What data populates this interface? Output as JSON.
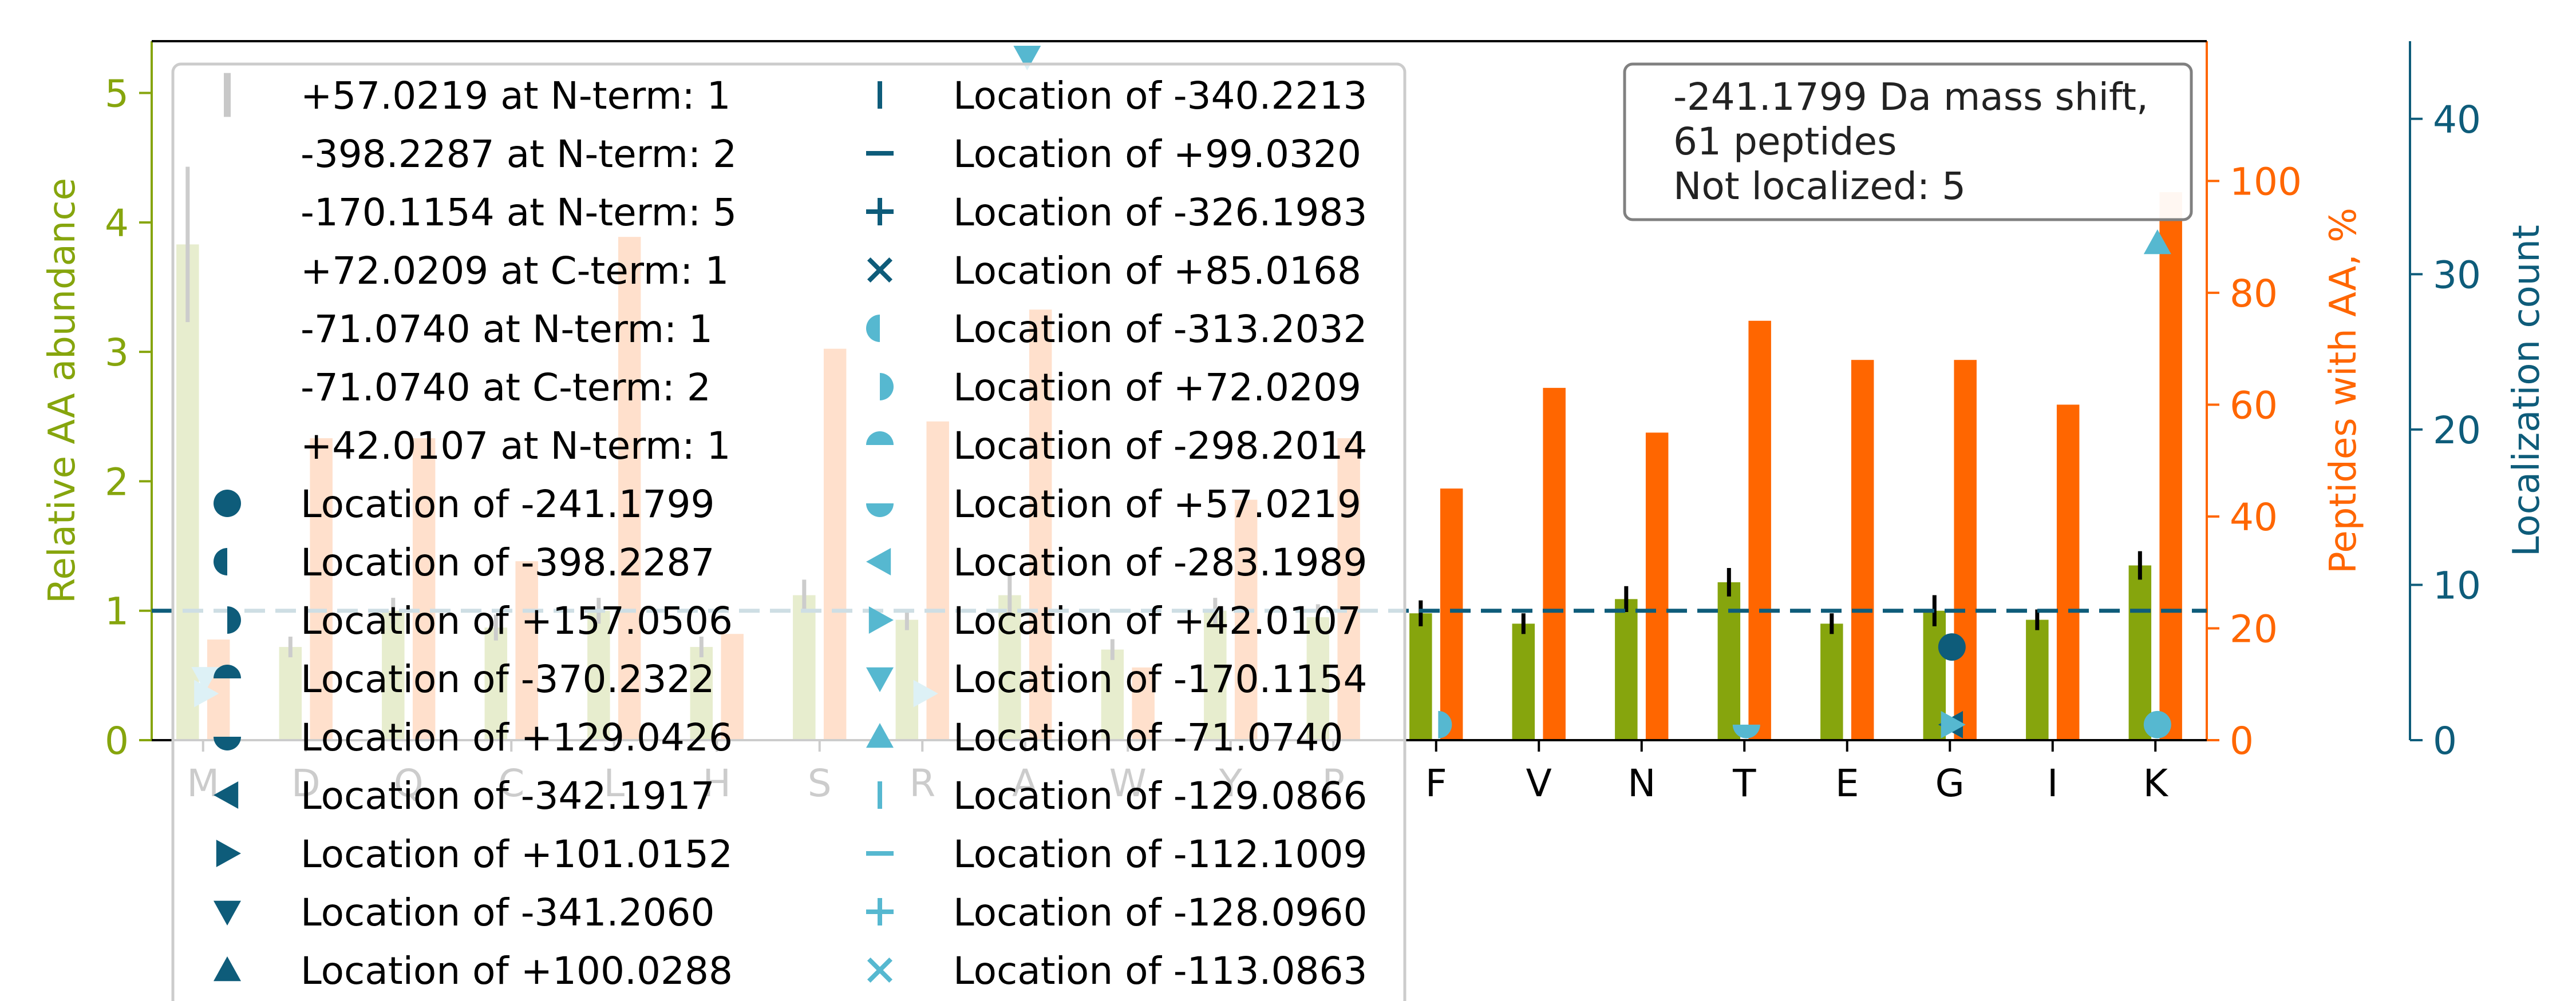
{
  "chart_data": {
    "type": "bar",
    "categories": [
      "M",
      "D",
      "Q",
      "C",
      "L",
      "H",
      "S",
      "R",
      "A",
      "W",
      "Y",
      "P",
      "F",
      "V",
      "N",
      "T",
      "E",
      "G",
      "I",
      "K"
    ],
    "left_axis": {
      "label": "Relative AA abundance",
      "ylim": [
        0,
        5.4
      ],
      "ticks": [
        "0",
        "1",
        "2",
        "3",
        "4",
        "5"
      ],
      "color": "#86a50d"
    },
    "right_axis": {
      "label": "Peptides with AA, %",
      "ylim": [
        0,
        125
      ],
      "ticks": [
        "0",
        "20",
        "40",
        "60",
        "80",
        "100"
      ],
      "color": "#ff6600"
    },
    "far_right_axis": {
      "label": "Localization count",
      "ylim": [
        0,
        45
      ],
      "ticks": [
        "0",
        "10",
        "20",
        "30",
        "40"
      ],
      "color": "#0e5c7a"
    },
    "reference_line": {
      "value": 1,
      "style": "dashed",
      "color": "#0e5c7a"
    },
    "series": [
      {
        "axis": "left",
        "color": "#86a50d",
        "values": [
          3.83,
          0.72,
          1.0,
          0.87,
          1.0,
          0.72,
          1.12,
          0.93,
          1.12,
          0.7,
          1.0,
          0.95,
          0.98,
          0.9,
          1.09,
          1.22,
          0.9,
          1.0,
          0.93,
          1.35
        ],
        "errors": [
          0.6,
          0.08,
          0.1,
          0.1,
          0.1,
          0.08,
          0.12,
          0.08,
          0.15,
          0.08,
          0.1,
          0.1,
          0.1,
          0.08,
          0.1,
          0.11,
          0.08,
          0.12,
          0.08,
          0.11
        ]
      },
      {
        "axis": "right",
        "color": "#ff6600",
        "values": [
          18,
          54,
          54,
          32,
          90,
          19,
          70,
          57,
          77,
          13,
          43,
          54,
          45,
          63,
          55,
          75,
          68,
          68,
          60,
          98
        ]
      }
    ],
    "localization_markers": [
      {
        "category": "M",
        "count": 3,
        "marker": "triangle-right",
        "color": "#56b8d0"
      },
      {
        "category": "M",
        "count": 4,
        "marker": "triangle-down",
        "color": "#56b8d0"
      },
      {
        "category": "R",
        "count": 3,
        "marker": "triangle-right",
        "color": "#56b8d0"
      },
      {
        "category": "A",
        "count": 44,
        "marker": "triangle-down",
        "color": "#56b8d0"
      },
      {
        "category": "F",
        "count": 1,
        "marker": "circle-right",
        "color": "#56b8d0"
      },
      {
        "category": "T",
        "count": 1,
        "marker": "circle-bottom",
        "color": "#56b8d0"
      },
      {
        "category": "G",
        "count": 6,
        "marker": "circle",
        "color": "#0e5c7a"
      },
      {
        "category": "G",
        "count": 1,
        "marker": "triangle-left",
        "color": "#0e5c7a"
      },
      {
        "category": "G",
        "count": 1,
        "marker": "triangle-right",
        "color": "#56b8d0"
      },
      {
        "category": "K",
        "count": 32,
        "marker": "triangle-up",
        "color": "#56b8d0"
      },
      {
        "category": "K",
        "count": 1,
        "marker": "circle",
        "color": "#56b8d0"
      }
    ],
    "legend": {
      "placement": "upper-left",
      "entries_col1": [
        {
          "label": "+57.0219 at N-term: 1",
          "marker": "bar",
          "color": "#c8c8c8"
        },
        {
          "label": "-398.2287 at N-term: 2",
          "marker": "none"
        },
        {
          "label": "-170.1154 at N-term: 5",
          "marker": "none"
        },
        {
          "label": "+72.0209 at C-term: 1",
          "marker": "none"
        },
        {
          "label": "-71.0740 at N-term: 1",
          "marker": "none"
        },
        {
          "label": "-71.0740 at C-term: 2",
          "marker": "none"
        },
        {
          "label": "+42.0107 at N-term: 1",
          "marker": "none"
        },
        {
          "label": "Location of -241.1799",
          "marker": "circle",
          "color": "#0e5c7a"
        },
        {
          "label": "Location of -398.2287",
          "marker": "circle-left",
          "color": "#0e5c7a"
        },
        {
          "label": "Location of +157.0506",
          "marker": "circle-right",
          "color": "#0e5c7a"
        },
        {
          "label": "Location of -370.2322",
          "marker": "circle-top",
          "color": "#0e5c7a"
        },
        {
          "label": "Location of +129.0426",
          "marker": "circle-bottom",
          "color": "#0e5c7a"
        },
        {
          "label": "Location of -342.1917",
          "marker": "triangle-left",
          "color": "#0e5c7a"
        },
        {
          "label": "Location of +101.0152",
          "marker": "triangle-right",
          "color": "#0e5c7a"
        },
        {
          "label": "Location of -341.2060",
          "marker": "triangle-down",
          "color": "#0e5c7a"
        },
        {
          "label": "Location of +100.0288",
          "marker": "triangle-up",
          "color": "#0e5c7a"
        }
      ],
      "entries_col2": [
        {
          "label": "Location of -340.2213",
          "marker": "vline",
          "color": "#0e5c7a"
        },
        {
          "label": "Location of +99.0320",
          "marker": "hline",
          "color": "#0e5c7a"
        },
        {
          "label": "Location of -326.1983",
          "marker": "plus",
          "color": "#0e5c7a"
        },
        {
          "label": "Location of +85.0168",
          "marker": "x",
          "color": "#0e5c7a"
        },
        {
          "label": "Location of -313.2032",
          "marker": "circle-left",
          "color": "#56b8d0"
        },
        {
          "label": "Location of +72.0209",
          "marker": "circle-right",
          "color": "#56b8d0"
        },
        {
          "label": "Location of -298.2014",
          "marker": "circle-top",
          "color": "#56b8d0"
        },
        {
          "label": "Location of +57.0219",
          "marker": "circle-bottom",
          "color": "#56b8d0"
        },
        {
          "label": "Location of -283.1989",
          "marker": "triangle-left",
          "color": "#56b8d0"
        },
        {
          "label": "Location of +42.0107",
          "marker": "triangle-right",
          "color": "#56b8d0"
        },
        {
          "label": "Location of -170.1154",
          "marker": "triangle-down",
          "color": "#56b8d0"
        },
        {
          "label": "Location of -71.0740",
          "marker": "triangle-up",
          "color": "#56b8d0"
        },
        {
          "label": "Location of -129.0866",
          "marker": "vline",
          "color": "#56b8d0"
        },
        {
          "label": "Location of -112.1009",
          "marker": "hline",
          "color": "#56b8d0"
        },
        {
          "label": "Location of -128.0960",
          "marker": "plus",
          "color": "#56b8d0"
        },
        {
          "label": "Location of -113.0863",
          "marker": "x",
          "color": "#56b8d0"
        }
      ]
    },
    "info_box": {
      "placement": "top-right",
      "lines": [
        "-241.1799 Da mass shift,",
        "61 peptides",
        "Not localized: 5"
      ]
    }
  }
}
